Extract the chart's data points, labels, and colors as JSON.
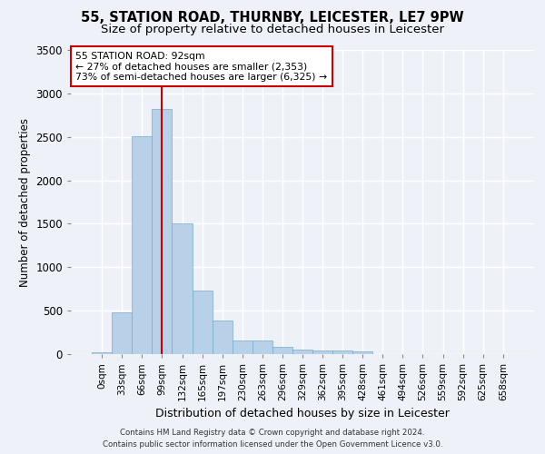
{
  "title_line1": "55, STATION ROAD, THURNBY, LEICESTER, LE7 9PW",
  "title_line2": "Size of property relative to detached houses in Leicester",
  "xlabel": "Distribution of detached houses by size in Leicester",
  "ylabel": "Number of detached properties",
  "bar_color": "#b8d0e8",
  "bar_edge_color": "#7aaac8",
  "categories": [
    "0sqm",
    "33sqm",
    "66sqm",
    "99sqm",
    "132sqm",
    "165sqm",
    "197sqm",
    "230sqm",
    "263sqm",
    "296sqm",
    "329sqm",
    "362sqm",
    "395sqm",
    "428sqm",
    "461sqm",
    "494sqm",
    "526sqm",
    "559sqm",
    "592sqm",
    "625sqm",
    "658sqm"
  ],
  "values": [
    20,
    480,
    2510,
    2820,
    1500,
    730,
    390,
    155,
    155,
    80,
    55,
    40,
    40,
    30,
    0,
    0,
    0,
    0,
    0,
    0,
    0
  ],
  "ylim": [
    0,
    3500
  ],
  "yticks": [
    0,
    500,
    1000,
    1500,
    2000,
    2500,
    3000,
    3500
  ],
  "vline_x": 3.0,
  "vline_color": "#cc0000",
  "annotation_text": "55 STATION ROAD: 92sqm\n← 27% of detached houses are smaller (2,353)\n73% of semi-detached houses are larger (6,325) →",
  "annotation_box_color": "#ffffff",
  "annotation_box_edge": "#cc0000",
  "footer_line1": "Contains HM Land Registry data © Crown copyright and database right 2024.",
  "footer_line2": "Contains public sector information licensed under the Open Government Licence v3.0.",
  "background_color": "#eef2f8",
  "grid_color": "#ffffff",
  "title_fontsize": 10.5,
  "subtitle_fontsize": 9.5,
  "bar_width": 1.0
}
